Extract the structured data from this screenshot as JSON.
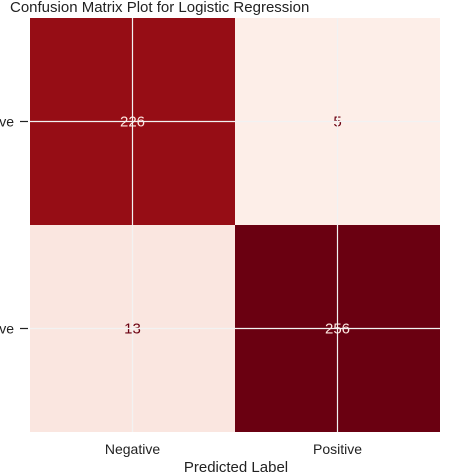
{
  "chart_data": {
    "type": "heatmap",
    "title": "Confusion Matrix Plot for Logistic Regression",
    "xlabel": "Predicted Label",
    "ylabel": "",
    "x_categories": [
      "Negative",
      "Positive"
    ],
    "y_tick_labels": [
      "ve",
      "ve"
    ],
    "matrix": [
      [
        226,
        5
      ],
      [
        13,
        256
      ]
    ],
    "grid": true,
    "colormap": "Reds",
    "colors": {
      "low": "#fdeee8",
      "mid": "#a11016",
      "high": "#6a0011",
      "text_on_light": "#6a0011",
      "text_on_dark": "#fde6e0"
    }
  }
}
